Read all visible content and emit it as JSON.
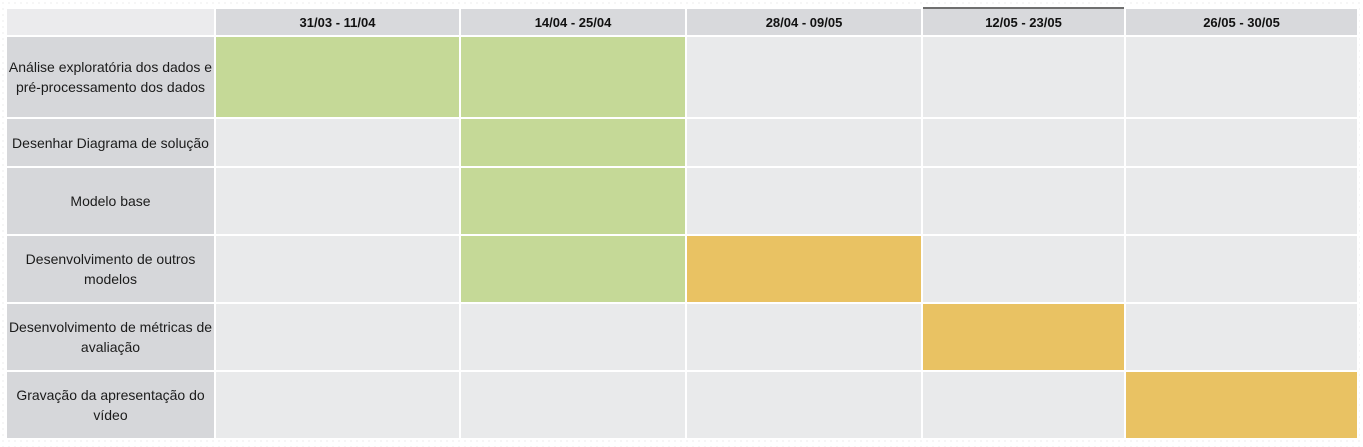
{
  "colors": {
    "empty": "#e9eaeb",
    "green": "#c5d997",
    "yellow": "#e9c263",
    "header": "#d8d9dc"
  },
  "periods": [
    "31/03 - 11/04",
    "14/04 - 25/04",
    "28/04 - 09/05",
    "12/05 - 23/05",
    "26/05 - 30/05"
  ],
  "tasks": [
    {
      "label": "Análise exploratória dos dados e pré-processamento dos dados",
      "cells": [
        "green",
        "green",
        "empty",
        "empty",
        "empty"
      ]
    },
    {
      "label": "Desenhar Diagrama de solução",
      "cells": [
        "empty",
        "green",
        "empty",
        "empty",
        "empty"
      ]
    },
    {
      "label": "Modelo base",
      "cells": [
        "empty",
        "green",
        "empty",
        "empty",
        "empty"
      ]
    },
    {
      "label": "Desenvolvimento de outros modelos",
      "cells": [
        "empty",
        "green",
        "yellow",
        "empty",
        "empty"
      ]
    },
    {
      "label": "Desenvolvimento de métricas de avaliação",
      "cells": [
        "empty",
        "empty",
        "empty",
        "yellow",
        "empty"
      ]
    },
    {
      "label": "Gravação da apresentação do vídeo",
      "cells": [
        "empty",
        "empty",
        "empty",
        "empty",
        "yellow"
      ]
    }
  ]
}
